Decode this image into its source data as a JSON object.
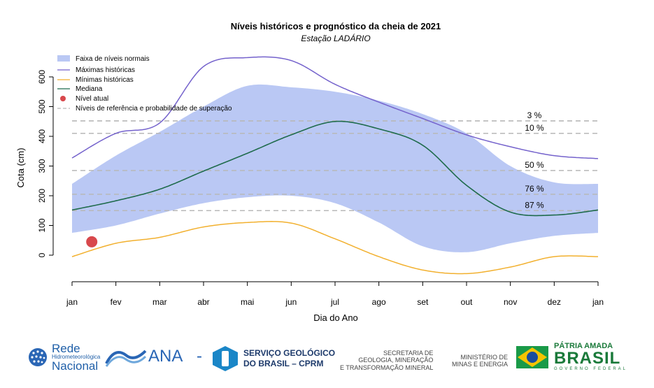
{
  "chart_data": {
    "type": "area",
    "title": "Níveis históricos e prognóstico da cheia de 2021",
    "subtitle": "Estação LADÁRIO",
    "xlabel": "Dia do Ano",
    "ylabel": "Cota (cm)",
    "x_ticks": [
      "jan",
      "fev",
      "mar",
      "abr",
      "mai",
      "jun",
      "jul",
      "ago",
      "set",
      "out",
      "nov",
      "dez",
      "jan"
    ],
    "y_ticks": [
      0,
      100,
      200,
      300,
      400,
      500,
      600
    ],
    "ylim": [
      -80,
      670
    ],
    "xlim_months": [
      0,
      12
    ],
    "legend_position": "top-left",
    "legend": {
      "band": "Faixa de níveis normais",
      "max": "Máximas históricas",
      "min": "Mínimas históricas",
      "median": "Mediana",
      "current": "Nível atual",
      "ref": "Níveis de referência e probabilidade de superação"
    },
    "colors": {
      "band": "#bac8f4",
      "max": "#7462cc",
      "min": "#f2b02e",
      "median": "#1f6b4c",
      "current": "#d8484c",
      "ref": "#b8b8b8"
    },
    "month_x": [
      0,
      1,
      2,
      3,
      4,
      5,
      6,
      7,
      8,
      9,
      10,
      11,
      12
    ],
    "maximas": [
      327,
      410,
      445,
      635,
      665,
      655,
      575,
      515,
      460,
      405,
      365,
      335,
      325
    ],
    "minimas": [
      -5,
      40,
      60,
      95,
      110,
      108,
      55,
      -5,
      -50,
      -62,
      -40,
      -5,
      -5
    ],
    "band_upper": [
      240,
      335,
      415,
      500,
      570,
      565,
      550,
      520,
      475,
      410,
      300,
      245,
      240
    ],
    "band_lower": [
      75,
      100,
      140,
      175,
      195,
      200,
      175,
      110,
      30,
      10,
      40,
      65,
      75
    ],
    "mediana": [
      152,
      183,
      222,
      283,
      343,
      405,
      450,
      425,
      370,
      235,
      145,
      135,
      152
    ],
    "nivel_atual": {
      "x": 0.45,
      "y": 45
    },
    "ref_levels": [
      {
        "label": "3 %",
        "value": 452
      },
      {
        "label": "10 %",
        "value": 410
      },
      {
        "label": "50 %",
        "value": 285
      },
      {
        "label": "76 %",
        "value": 205
      },
      {
        "label": "87 %",
        "value": 150
      }
    ]
  },
  "footer": {
    "rede_line1": "Rede",
    "rede_line2": "Hidrometeorológica",
    "rede_line3": "Nacional",
    "ana": "ANA",
    "dash": "-",
    "cprm_line1": "SERVIÇO GEOLÓGICO",
    "cprm_line2": "DO BRASIL – CPRM",
    "sec_line1": "SECRETARIA DE",
    "sec_line2": "GEOLOGIA, MINERAÇÃO",
    "sec_line3": "E TRANSFORMAÇÃO MINERAL",
    "min_line1": "MINISTÉRIO DE",
    "min_line2": "MINAS E ENERGIA",
    "brasil_line1": "PÁTRIA AMADA",
    "brasil_line2": "BRASIL",
    "brasil_line3": "GOVERNO FEDERAL"
  }
}
